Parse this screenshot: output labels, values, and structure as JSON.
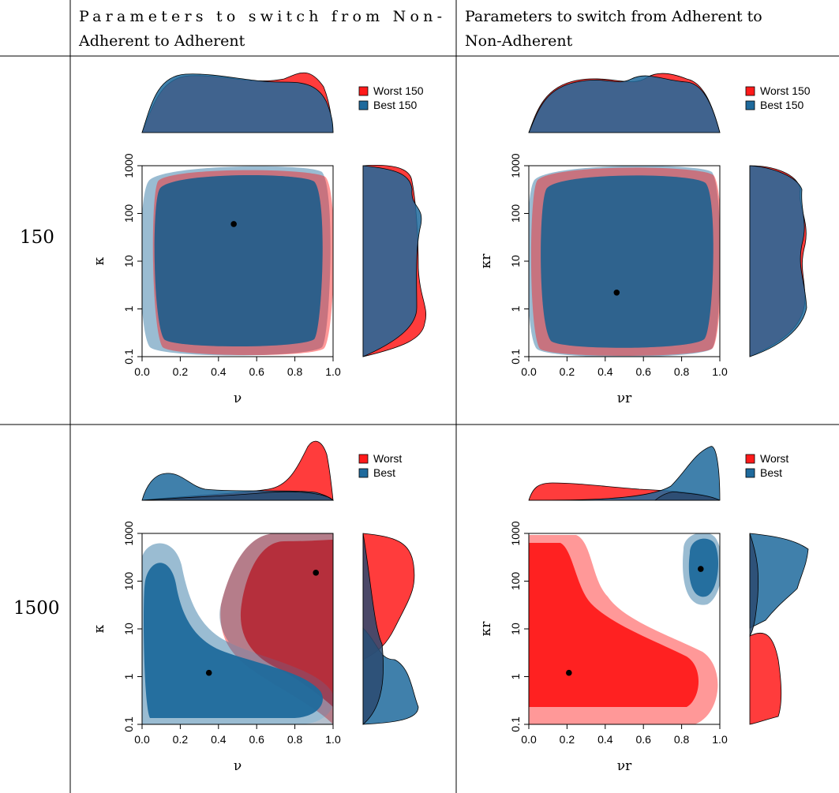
{
  "table": {
    "col_headers": [
      [
        "Parameters to switch from Non-",
        "Adherent to Adherent"
      ],
      [
        "Parameters to switch from Adherent to",
        "Non-Adherent"
      ]
    ],
    "row_labels": [
      "150",
      "1500"
    ]
  },
  "colors": {
    "worst": "#ff1a1a",
    "best": "#1f6a9c",
    "overlap": "#2c4a70"
  },
  "chart_data": [
    {
      "type": "scatter",
      "panel": "150 / Non-Adherent to Adherent",
      "xlabel": "ν",
      "ylabel": "κ",
      "xlim": [
        0,
        1
      ],
      "ylim": [
        0.1,
        1000
      ],
      "ylog": true,
      "xticks": [
        "0.0",
        "0.2",
        "0.4",
        "0.6",
        "0.8",
        "1.0"
      ],
      "yticks": [
        "0.1",
        "1",
        "10",
        "100",
        "1000"
      ],
      "legend": [
        "Worst 150",
        "Best 150"
      ],
      "series": [
        {
          "name": "Worst 150",
          "region": {
            "x": [
              0.07,
              0.97
            ],
            "y": [
              0.15,
              800
            ]
          }
        },
        {
          "name": "Best 150",
          "region": {
            "x": [
              0.03,
              0.93
            ],
            "y": [
              0.12,
              900
            ]
          }
        }
      ],
      "point": {
        "x": 0.48,
        "y": 60
      }
    },
    {
      "type": "scatter",
      "panel": "150 / Adherent to Non-Adherent",
      "xlabel": "νr",
      "ylabel": "κr",
      "xlim": [
        0,
        1
      ],
      "ylim": [
        0.1,
        1000
      ],
      "ylog": true,
      "xticks": [
        "0.0",
        "0.2",
        "0.4",
        "0.6",
        "0.8",
        "1.0"
      ],
      "yticks": [
        "0.1",
        "1",
        "10",
        "100",
        "1000"
      ],
      "legend": [
        "Worst 150",
        "Best 150"
      ],
      "series": [
        {
          "name": "Worst 150",
          "region": {
            "x": [
              0.03,
              0.98
            ],
            "y": [
              0.12,
              900
            ]
          }
        },
        {
          "name": "Best 150",
          "region": {
            "x": [
              0.03,
              0.96
            ],
            "y": [
              0.12,
              900
            ]
          }
        }
      ],
      "point": {
        "x": 0.46,
        "y": 2.2
      }
    },
    {
      "type": "scatter",
      "panel": "1500 / Non-Adherent to Adherent",
      "xlabel": "ν",
      "ylabel": "κ",
      "xlim": [
        0,
        1
      ],
      "ylim": [
        0.1,
        1000
      ],
      "ylog": true,
      "xticks": [
        "0.0",
        "0.2",
        "0.4",
        "0.6",
        "0.8",
        "1.0"
      ],
      "yticks": [
        "0.1",
        "1",
        "10",
        "100",
        "1000"
      ],
      "legend": [
        "Worst",
        "Best"
      ],
      "series": [
        {
          "name": "Worst",
          "region": {
            "x": [
              0.4,
              1.0
            ],
            "y": [
              0.5,
              1000
            ]
          }
        },
        {
          "name": "Best",
          "region": {
            "x": [
              0.0,
              0.95
            ],
            "y": [
              0.12,
              500
            ]
          }
        }
      ],
      "points": [
        {
          "x": 0.91,
          "y": 150
        },
        {
          "x": 0.35,
          "y": 1.2
        }
      ]
    },
    {
      "type": "scatter",
      "panel": "1500 / Adherent to Non-Adherent",
      "xlabel": "νr",
      "ylabel": "κr",
      "xlim": [
        0,
        1
      ],
      "ylim": [
        0.1,
        1000
      ],
      "ylog": true,
      "xticks": [
        "0.0",
        "0.2",
        "0.4",
        "0.6",
        "0.8",
        "1.0"
      ],
      "yticks": [
        "0.1",
        "1",
        "10",
        "100",
        "1000"
      ],
      "legend": [
        "Worst",
        "Best"
      ],
      "series": [
        {
          "name": "Worst",
          "region": {
            "x": [
              0.0,
              0.97
            ],
            "y": [
              0.12,
              900
            ]
          }
        },
        {
          "name": "Best",
          "region": {
            "x": [
              0.8,
              1.0
            ],
            "y": [
              20,
              900
            ]
          }
        }
      ],
      "points": [
        {
          "x": 0.21,
          "y": 1.2
        },
        {
          "x": 0.9,
          "y": 180
        }
      ]
    }
  ]
}
